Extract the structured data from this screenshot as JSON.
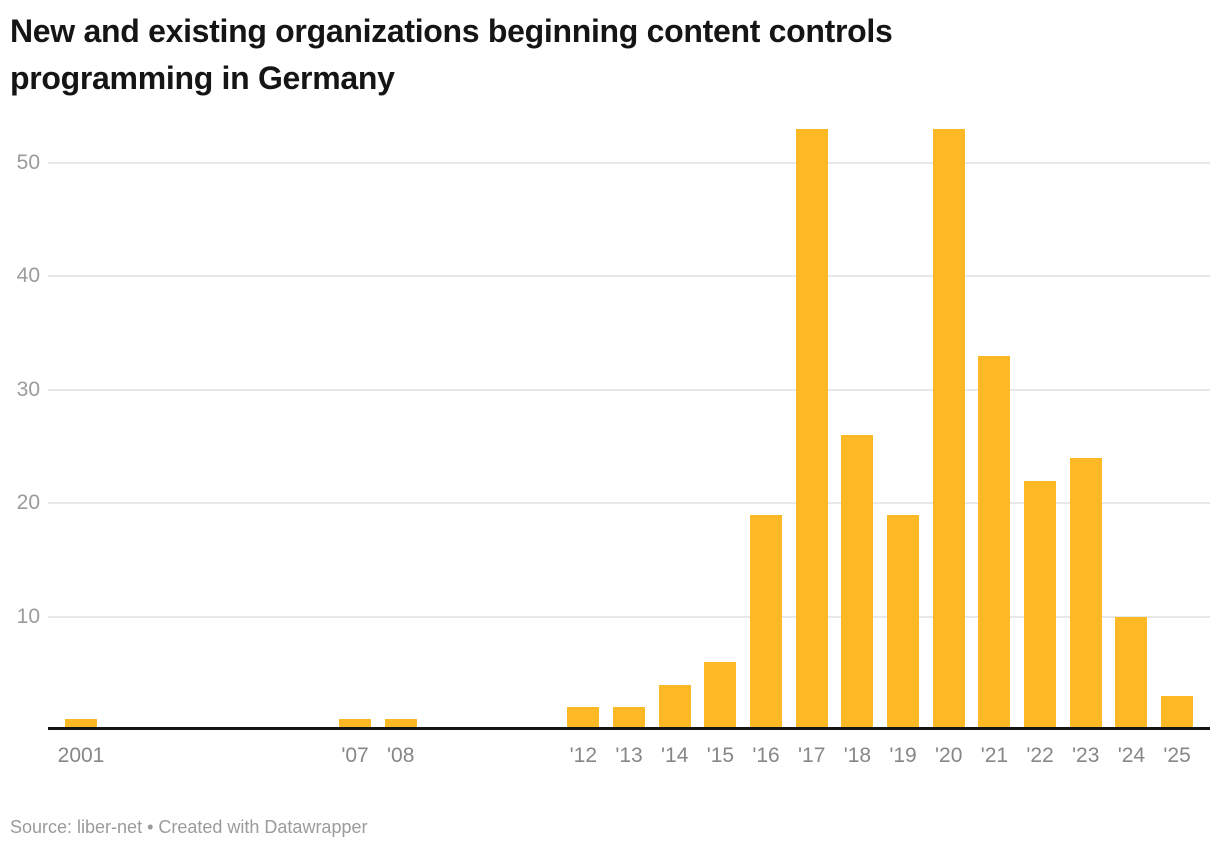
{
  "title": "New and existing organizations beginning content controls\nprogramming in Germany",
  "footer": {
    "text": "Source: liber-net • Created with Datawrapper"
  },
  "colors": {
    "bar": "#FDB925",
    "grid": "#e8e8e8",
    "axis_line": "#141414",
    "title_text": "#151515",
    "y_tick_text": "#9b9b9b",
    "x_tick_text": "#878787",
    "footer_text": "#9b9b9b"
  },
  "chart_data": {
    "type": "bar",
    "title": "New and existing organizations beginning content controls programming in Germany",
    "xlabel": "",
    "ylabel": "",
    "x_axis": {
      "start_year": 2001,
      "end_year": 2025
    },
    "y_ticks": [
      10,
      20,
      30,
      40,
      50
    ],
    "ylim": [
      0,
      54
    ],
    "grid": "horizontal",
    "legend": "none",
    "source": "liber-net",
    "created_with": "Datawrapper",
    "points": [
      {
        "year": 2001,
        "label": "2001",
        "value": 1
      },
      {
        "year": 2007,
        "label": "'07",
        "value": 1
      },
      {
        "year": 2008,
        "label": "'08",
        "value": 1
      },
      {
        "year": 2012,
        "label": "'12",
        "value": 2
      },
      {
        "year": 2013,
        "label": "'13",
        "value": 2
      },
      {
        "year": 2014,
        "label": "'14",
        "value": 4
      },
      {
        "year": 2015,
        "label": "'15",
        "value": 6
      },
      {
        "year": 2016,
        "label": "'16",
        "value": 19
      },
      {
        "year": 2017,
        "label": "'17",
        "value": 53
      },
      {
        "year": 2018,
        "label": "'18",
        "value": 26
      },
      {
        "year": 2019,
        "label": "'19",
        "value": 19
      },
      {
        "year": 2020,
        "label": "'20",
        "value": 53
      },
      {
        "year": 2021,
        "label": "'21",
        "value": 33
      },
      {
        "year": 2022,
        "label": "'22",
        "value": 22
      },
      {
        "year": 2023,
        "label": "'23",
        "value": 24
      },
      {
        "year": 2024,
        "label": "'24",
        "value": 10
      },
      {
        "year": 2025,
        "label": "'25",
        "value": 3
      }
    ]
  }
}
